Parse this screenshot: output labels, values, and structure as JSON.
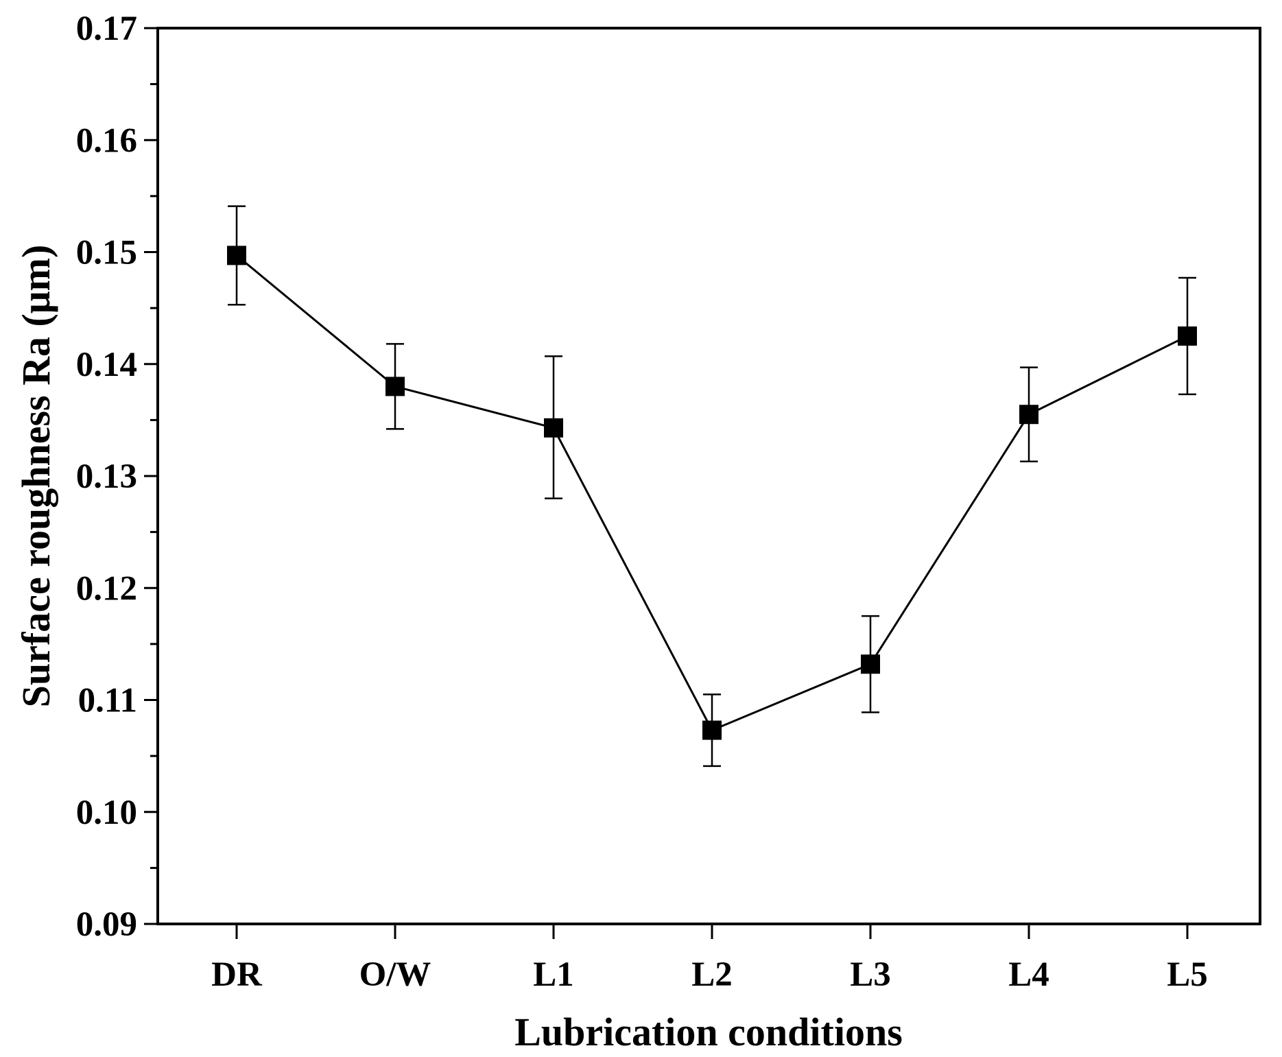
{
  "chart_data": {
    "type": "line",
    "title": "",
    "xlabel": "Lubrication conditions",
    "ylabel": "Surface roughness Ra (μm)",
    "categories": [
      "DR",
      "O/W",
      "L1",
      "L2",
      "L3",
      "L4",
      "L5"
    ],
    "series": [
      {
        "name": "Ra",
        "values": [
          0.1497,
          0.138,
          0.1343,
          0.1073,
          0.1132,
          0.1355,
          0.1425
        ],
        "error_upper": [
          0.1541,
          0.1418,
          0.1407,
          0.1105,
          0.1175,
          0.1397,
          0.1477
        ],
        "error_lower": [
          0.1453,
          0.1342,
          0.128,
          0.1041,
          0.1089,
          0.1313,
          0.1373
        ]
      }
    ],
    "ylim": [
      0.09,
      0.17
    ],
    "yticks": [
      "0.09",
      "0.10",
      "0.11",
      "0.12",
      "0.13",
      "0.14",
      "0.15",
      "0.16",
      "0.17"
    ],
    "grid": false,
    "marker": "square",
    "line_color": "#000000"
  }
}
